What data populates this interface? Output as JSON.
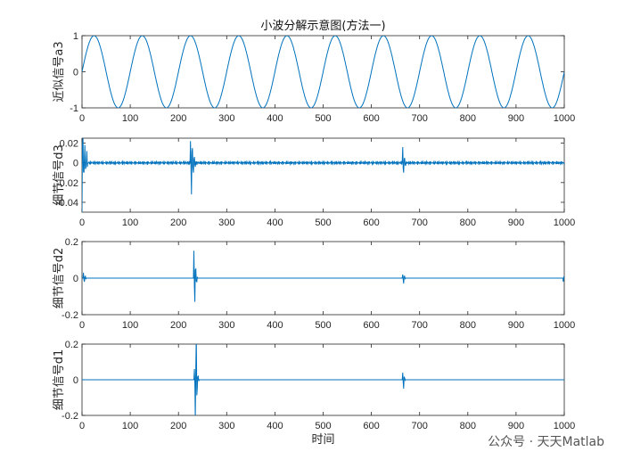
{
  "figure_title": "小波分解示意图(方法一)",
  "watermark": "公众号 · 天天Matlab",
  "colors": {
    "line": "#0072BD",
    "axes": "#262626",
    "background": "#ffffff"
  },
  "chart_data": [
    {
      "type": "line",
      "title": "小波分解示意图(方法一)",
      "xlabel": "",
      "ylabel": "近似信号a3",
      "xlim": [
        0,
        1000
      ],
      "ylim": [
        -1,
        1
      ],
      "xticks": [
        0,
        100,
        200,
        300,
        400,
        500,
        600,
        700,
        800,
        900,
        1000
      ],
      "yticks": [
        -1,
        0,
        1
      ],
      "grid": false,
      "series": [
        {
          "kind": "sine",
          "amplitude": 1,
          "period": 100,
          "phase_start": 0,
          "x": [
            0,
            1000
          ],
          "note": "sinusoid y = sin(2*pi*x/100)"
        }
      ],
      "x": [
        0,
        25,
        75,
        125,
        175,
        225,
        275,
        325,
        375,
        425,
        475,
        525,
        575,
        625,
        675,
        725,
        775,
        825,
        875,
        925,
        975,
        1000
      ],
      "y": [
        0,
        1,
        -1,
        1,
        -1,
        1,
        -1,
        1,
        -1,
        1,
        -1,
        1,
        -1,
        1,
        -1,
        1,
        -1,
        1,
        -1,
        1,
        -1,
        0
      ]
    },
    {
      "type": "line",
      "title": "",
      "xlabel": "",
      "ylabel": "细节信号d3",
      "xlim": [
        0,
        1000
      ],
      "ylim": [
        -0.05,
        0.025
      ],
      "xticks": [
        0,
        100,
        200,
        300,
        400,
        500,
        600,
        700,
        800,
        900,
        1000
      ],
      "yticks": [
        -0.04,
        -0.02,
        0,
        0.02
      ],
      "grid": false,
      "background_ripple": 0.002,
      "bursts": [
        {
          "x": 0,
          "values": [
            -0.05,
            0.025,
            -0.01,
            0.018,
            -0.005,
            0.012
          ]
        },
        {
          "x": 225,
          "values": [
            0.022,
            -0.032,
            0.015,
            -0.01,
            0.006,
            -0.004
          ]
        },
        {
          "x": 665,
          "values": [
            0.016,
            -0.01,
            0.005,
            -0.003
          ]
        }
      ]
    },
    {
      "type": "line",
      "title": "",
      "xlabel": "",
      "ylabel": "细节信号d2",
      "xlim": [
        0,
        1000
      ],
      "ylim": [
        -0.2,
        0.2
      ],
      "xticks": [
        0,
        100,
        200,
        300,
        400,
        500,
        600,
        700,
        800,
        900,
        1000
      ],
      "yticks": [
        -0.2,
        0,
        0.2
      ],
      "grid": false,
      "background_ripple": 0.0,
      "bursts": [
        {
          "x": 3,
          "values": [
            0.03,
            -0.02,
            0.01
          ]
        },
        {
          "x": 232,
          "values": [
            0.15,
            -0.13,
            0.05,
            -0.02
          ]
        },
        {
          "x": 665,
          "values": [
            0.02,
            -0.03,
            0.01
          ]
        },
        {
          "x": 998,
          "values": [
            -0.02,
            0.01
          ]
        }
      ]
    },
    {
      "type": "line",
      "title": "",
      "xlabel": "时间",
      "ylabel": "细节信号d1",
      "xlim": [
        0,
        1000
      ],
      "ylim": [
        -0.2,
        0.2
      ],
      "xticks": [
        0,
        100,
        200,
        300,
        400,
        500,
        600,
        700,
        800,
        900,
        1000
      ],
      "yticks": [
        -0.2,
        0,
        0.2
      ],
      "grid": false,
      "background_ripple": 0.0,
      "bursts": [
        {
          "x": 233,
          "values": [
            0.06,
            -0.22,
            0.25,
            -0.05,
            0.02
          ]
        },
        {
          "x": 665,
          "values": [
            0.04,
            -0.05,
            0.01
          ]
        }
      ]
    }
  ]
}
